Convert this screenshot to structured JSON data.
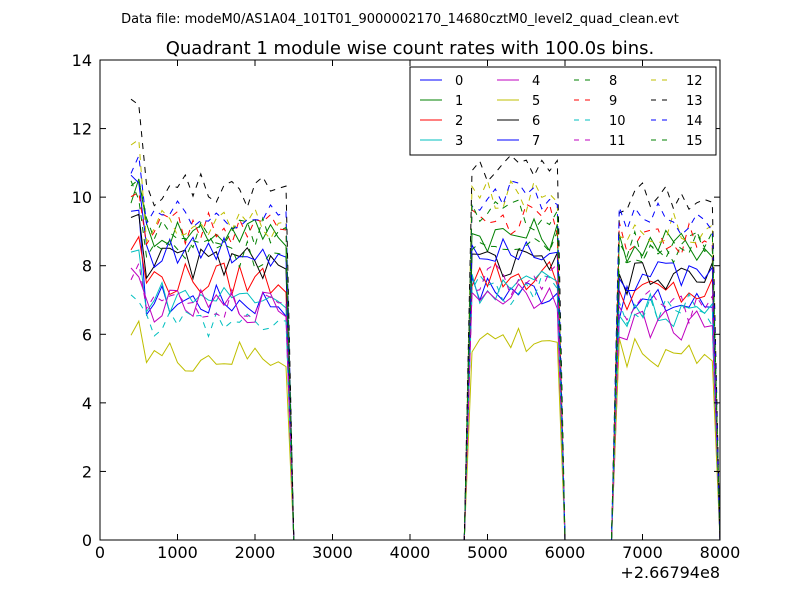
{
  "chart_data": {
    "type": "line",
    "suptitle": "Data file: modeM0/AS1A04_101T01_9000002170_14680cztM0_level2_quad_clean.evt",
    "title": "Quadrant 1 module wise count rates with 100.0s bins.",
    "xlabel": "",
    "ylabel": "",
    "x_offset_label": "+2.66794e8",
    "xlim": [
      0,
      8000
    ],
    "ylim": [
      0,
      14
    ],
    "x_ticks": [
      0,
      1000,
      2000,
      3000,
      4000,
      5000,
      6000,
      7000,
      8000
    ],
    "y_ticks": [
      0,
      2,
      4,
      6,
      8,
      10,
      12,
      14
    ],
    "grid": false,
    "legend": {
      "placement": "top-right",
      "columns": 4
    },
    "x": [
      400,
      500,
      600,
      700,
      800,
      900,
      1000,
      1100,
      1200,
      1300,
      1400,
      1500,
      1600,
      1700,
      1800,
      1900,
      2000,
      2100,
      2200,
      2300,
      2400,
      2500,
      2600,
      2700,
      2800,
      2900,
      3000,
      3100,
      3200,
      3300,
      3400,
      3500,
      3600,
      3700,
      3800,
      3900,
      4000,
      4100,
      4200,
      4300,
      4400,
      4500,
      4600,
      4700,
      4800,
      4900,
      5000,
      5100,
      5200,
      5300,
      5400,
      5500,
      5600,
      5700,
      5800,
      5900,
      6000,
      6100,
      6200,
      6300,
      6400,
      6500,
      6600,
      6700,
      6800,
      6900,
      7000,
      7100,
      7200,
      7300,
      7400,
      7500,
      7600,
      7700,
      7800,
      7900,
      8000
    ],
    "active_segments": [
      {
        "start": 400,
        "end": 2400,
        "drop_to": 2600
      },
      {
        "start": 4800,
        "end": 5900,
        "rise_from": 4700,
        "drop_to": 6100
      },
      {
        "start": 6700,
        "end": 7900,
        "rise_from": 6500,
        "drop_to": 8000
      }
    ],
    "series": [
      {
        "name": "0",
        "style": "solid",
        "color": "#0000ff",
        "levels": [
          9.2,
          7.0,
          7.3,
          6.9
        ]
      },
      {
        "name": "1",
        "style": "solid",
        "color": "#008000",
        "levels": [
          10.2,
          9.0,
          8.9,
          8.6
        ]
      },
      {
        "name": "2",
        "style": "solid",
        "color": "#ff0000",
        "levels": [
          8.6,
          7.6,
          7.7,
          7.2
        ]
      },
      {
        "name": "3",
        "style": "solid",
        "color": "#00bfbf",
        "levels": [
          8.3,
          7.1,
          7.4,
          6.7
        ]
      },
      {
        "name": "4",
        "style": "solid",
        "color": "#bf00bf",
        "levels": [
          7.6,
          6.8,
          7.2,
          6.3
        ]
      },
      {
        "name": "5",
        "style": "solid",
        "color": "#bfbf00",
        "levels": [
          6.4,
          5.3,
          5.8,
          5.5
        ]
      },
      {
        "name": "6",
        "style": "solid",
        "color": "#000000",
        "levels": [
          9.6,
          8.1,
          8.0,
          7.6
        ]
      },
      {
        "name": "7",
        "style": "solid",
        "color": "#0000ff",
        "levels": [
          10.6,
          8.4,
          8.6,
          7.7
        ]
      },
      {
        "name": "8",
        "style": "dashed",
        "color": "#008000",
        "levels": [
          10.2,
          8.4,
          8.8,
          8.5
        ]
      },
      {
        "name": "9",
        "style": "dashed",
        "color": "#ff0000",
        "levels": [
          10.5,
          9.1,
          9.3,
          8.8
        ]
      },
      {
        "name": "10",
        "style": "dashed",
        "color": "#00bfbf",
        "levels": [
          7.4,
          6.4,
          7.3,
          6.7
        ]
      },
      {
        "name": "11",
        "style": "dashed",
        "color": "#bf00bf",
        "levels": [
          7.6,
          6.9,
          7.6,
          6.8
        ]
      },
      {
        "name": "12",
        "style": "dashed",
        "color": "#bfbf00",
        "levels": [
          11.3,
          9.2,
          10.0,
          9.1
        ]
      },
      {
        "name": "13",
        "style": "dashed",
        "color": "#000000",
        "levels": [
          12.4,
          10.2,
          10.8,
          10.0
        ]
      },
      {
        "name": "14",
        "style": "dashed",
        "color": "#0000ff",
        "levels": [
          11.0,
          9.4,
          10.1,
          9.4
        ]
      },
      {
        "name": "15",
        "style": "dashed",
        "color": "#008000",
        "levels": [
          10.4,
          8.9,
          9.5,
          8.6
        ]
      }
    ]
  }
}
